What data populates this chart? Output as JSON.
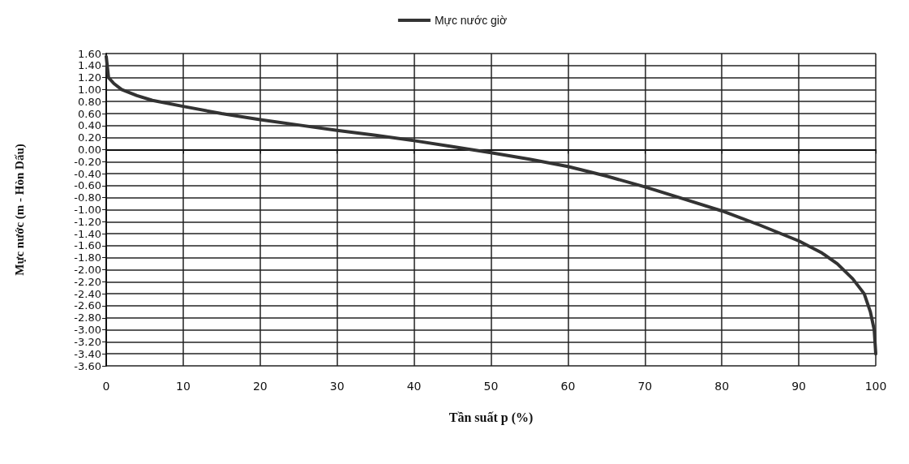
{
  "chart_data": {
    "type": "line",
    "xlabel": "Tần suất p (%)",
    "ylabel": "Mực nước (m - Hòn Dấu)",
    "xlim": [
      0,
      100
    ],
    "xticks": [
      0,
      10,
      20,
      30,
      40,
      50,
      60,
      70,
      80,
      90,
      100
    ],
    "ylim": [
      -3.6,
      1.6
    ],
    "yticks": [
      {
        "value": -3.6,
        "label": "-3.60"
      },
      {
        "value": -3.4,
        "label": "-3.40"
      },
      {
        "value": -3.2,
        "label": "-3.20"
      },
      {
        "value": -3.0,
        "label": "-3.00"
      },
      {
        "value": -2.8,
        "label": "-2.80"
      },
      {
        "value": -2.6,
        "label": "-2.60"
      },
      {
        "value": -2.4,
        "label": "-2.40"
      },
      {
        "value": -2.2,
        "label": "-2.20"
      },
      {
        "value": -2.0,
        "label": "-2.00"
      },
      {
        "value": -1.8,
        "label": "-1.80"
      },
      {
        "value": -1.6,
        "label": "-1.60"
      },
      {
        "value": -1.4,
        "label": "-1.40"
      },
      {
        "value": -1.2,
        "label": "-1.20"
      },
      {
        "value": -1.0,
        "label": "-1.00"
      },
      {
        "value": -0.8,
        "label": "-0.80"
      },
      {
        "value": -0.6,
        "label": "-0.60"
      },
      {
        "value": -0.4,
        "label": "-0.40"
      },
      {
        "value": -0.2,
        "label": "-0.20"
      },
      {
        "value": 0,
        "label": "0.00"
      },
      {
        "value": 0.2,
        "label": "0.20"
      },
      {
        "value": 0.4,
        "label": "0.40"
      },
      {
        "value": 0.6,
        "label": "0.60"
      },
      {
        "value": 0.8,
        "label": "0.80"
      },
      {
        "value": 1.0,
        "label": "1.00"
      },
      {
        "value": 1.2,
        "label": "1.20"
      },
      {
        "value": 1.4,
        "label": "1.40"
      },
      {
        "value": 1.6,
        "label": "1.60"
      }
    ],
    "grid": true,
    "legend": "top",
    "marker": "none",
    "line_style": "solid",
    "series": [
      {
        "name": "Mực nước giờ",
        "color": "#333333",
        "x": [
          0,
          0.3,
          1,
          2,
          4,
          6,
          10,
          15,
          20,
          25,
          30,
          35,
          40,
          45,
          50,
          55,
          60,
          65,
          70,
          75,
          80,
          85,
          90,
          93,
          95,
          97,
          98.5,
          99.3,
          99.8,
          100
        ],
        "values": [
          1.55,
          1.2,
          1.1,
          1.0,
          0.9,
          0.82,
          0.72,
          0.6,
          0.5,
          0.41,
          0.32,
          0.24,
          0.15,
          0.05,
          -0.05,
          -0.16,
          -0.28,
          -0.44,
          -0.62,
          -0.82,
          -1.02,
          -1.26,
          -1.52,
          -1.72,
          -1.9,
          -2.15,
          -2.4,
          -2.7,
          -3.0,
          -3.4
        ]
      }
    ]
  }
}
